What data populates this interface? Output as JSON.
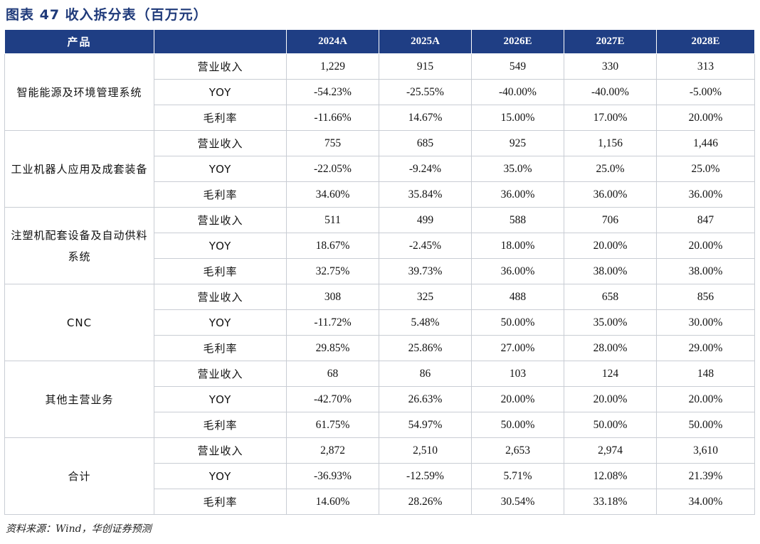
{
  "title": "图表 47   收入拆分表（百万元）",
  "header": {
    "product": "产品",
    "metric": "",
    "years": [
      "2024A",
      "2025A",
      "2026E",
      "2027E",
      "2028E"
    ]
  },
  "groups": [
    {
      "name": "智能能源及环境管理系统",
      "rows": [
        {
          "metric": "营业收入",
          "values": [
            "1,229",
            "915",
            "549",
            "330",
            "313"
          ]
        },
        {
          "metric": "YOY",
          "values": [
            "-54.23%",
            "-25.55%",
            "-40.00%",
            "-40.00%",
            "-5.00%"
          ]
        },
        {
          "metric": "毛利率",
          "values": [
            "-11.66%",
            "14.67%",
            "15.00%",
            "17.00%",
            "20.00%"
          ]
        }
      ]
    },
    {
      "name": "工业机器人应用及成套装备",
      "rows": [
        {
          "metric": "营业收入",
          "values": [
            "755",
            "685",
            "925",
            "1,156",
            "1,446"
          ]
        },
        {
          "metric": "YOY",
          "values": [
            "-22.05%",
            "-9.24%",
            "35.0%",
            "25.0%",
            "25.0%"
          ]
        },
        {
          "metric": "毛利率",
          "values": [
            "34.60%",
            "35.84%",
            "36.00%",
            "36.00%",
            "36.00%"
          ]
        }
      ]
    },
    {
      "name": "注塑机配套设备及自动供料系统",
      "rows": [
        {
          "metric": "营业收入",
          "values": [
            "511",
            "499",
            "588",
            "706",
            "847"
          ]
        },
        {
          "metric": "YOY",
          "values": [
            "18.67%",
            "-2.45%",
            "18.00%",
            "20.00%",
            "20.00%"
          ]
        },
        {
          "metric": "毛利率",
          "values": [
            "32.75%",
            "39.73%",
            "36.00%",
            "38.00%",
            "38.00%"
          ]
        }
      ]
    },
    {
      "name": "CNC",
      "rows": [
        {
          "metric": "营业收入",
          "values": [
            "308",
            "325",
            "488",
            "658",
            "856"
          ]
        },
        {
          "metric": "YOY",
          "values": [
            "-11.72%",
            "5.48%",
            "50.00%",
            "35.00%",
            "30.00%"
          ]
        },
        {
          "metric": "毛利率",
          "values": [
            "29.85%",
            "25.86%",
            "27.00%",
            "28.00%",
            "29.00%"
          ]
        }
      ]
    },
    {
      "name": "其他主营业务",
      "rows": [
        {
          "metric": "营业收入",
          "values": [
            "68",
            "86",
            "103",
            "124",
            "148"
          ]
        },
        {
          "metric": "YOY",
          "values": [
            "-42.70%",
            "26.63%",
            "20.00%",
            "20.00%",
            "20.00%"
          ]
        },
        {
          "metric": "毛利率",
          "values": [
            "61.75%",
            "54.97%",
            "50.00%",
            "50.00%",
            "50.00%"
          ]
        }
      ]
    },
    {
      "name": "合计",
      "rows": [
        {
          "metric": "营业收入",
          "values": [
            "2,872",
            "2,510",
            "2,653",
            "2,974",
            "3,610"
          ]
        },
        {
          "metric": "YOY",
          "values": [
            "-36.93%",
            "-12.59%",
            "5.71%",
            "12.08%",
            "21.39%"
          ]
        },
        {
          "metric": "毛利率",
          "values": [
            "14.60%",
            "28.26%",
            "30.54%",
            "33.18%",
            "34.00%"
          ]
        }
      ]
    }
  ],
  "source": "资料来源：Wind，华创证券预测",
  "colors": {
    "header_bg": "#1f3e84",
    "row_odd": "#ffffff",
    "row_even": "#ffffff",
    "title": "#1f3a7a"
  }
}
